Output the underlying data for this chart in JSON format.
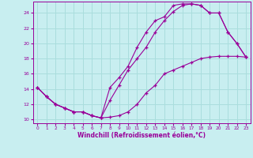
{
  "xlabel": "Windchill (Refroidissement éolien,°C)",
  "bg_color": "#c8eef0",
  "grid_color": "#aadddd",
  "line_color": "#990099",
  "xlim": [
    -0.5,
    23.5
  ],
  "ylim": [
    9.5,
    25.5
  ],
  "xticks": [
    0,
    1,
    2,
    3,
    4,
    5,
    6,
    7,
    8,
    9,
    10,
    11,
    12,
    13,
    14,
    15,
    16,
    17,
    18,
    19,
    20,
    21,
    22,
    23
  ],
  "yticks": [
    10,
    12,
    14,
    16,
    18,
    20,
    22,
    24
  ],
  "line1_x": [
    0,
    1,
    2,
    3,
    4,
    5,
    6,
    7,
    8,
    9,
    10,
    11,
    12,
    13,
    14,
    15,
    16,
    17,
    18,
    19,
    20,
    21,
    22,
    23
  ],
  "line1_y": [
    14.2,
    13.0,
    12.0,
    11.5,
    11.0,
    11.0,
    10.5,
    10.2,
    10.3,
    10.5,
    11.0,
    12.0,
    13.5,
    14.5,
    16.0,
    16.5,
    17.0,
    17.5,
    18.0,
    18.2,
    18.3,
    18.3,
    18.3,
    18.2
  ],
  "line2_x": [
    0,
    1,
    2,
    3,
    4,
    5,
    6,
    7,
    8,
    9,
    10,
    11,
    12,
    13,
    14,
    15,
    16,
    17,
    18,
    19,
    20,
    21,
    22,
    23
  ],
  "line2_y": [
    14.2,
    13.0,
    12.0,
    11.5,
    11.0,
    11.0,
    10.5,
    10.2,
    12.5,
    14.5,
    16.5,
    18.0,
    19.5,
    21.5,
    23.0,
    24.2,
    25.0,
    25.2,
    25.0,
    24.0,
    24.0,
    21.5,
    20.0,
    18.2
  ],
  "line3_x": [
    0,
    1,
    2,
    3,
    4,
    5,
    6,
    7,
    8,
    9,
    10,
    11,
    12,
    13,
    14,
    15,
    16,
    17,
    18,
    19,
    20,
    21,
    22,
    23
  ],
  "line3_y": [
    14.2,
    13.0,
    12.0,
    11.5,
    11.0,
    11.0,
    10.5,
    10.2,
    14.2,
    15.5,
    17.0,
    19.5,
    21.5,
    23.0,
    23.5,
    25.0,
    25.2,
    25.2,
    25.0,
    24.0,
    24.0,
    21.5,
    20.0,
    18.2
  ]
}
